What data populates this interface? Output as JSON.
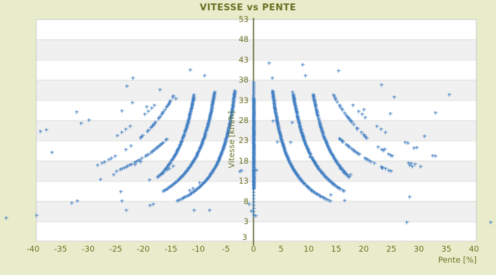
{
  "title": "VITESSE vs PENTE",
  "axes": {
    "x_title": "Pente [%]",
    "y_title": "Vitesse [km/h]",
    "y_axis_bottom_label": "3"
  },
  "colors": {
    "background": "#e9ecca",
    "band_light": "#ffffff",
    "band_dark": "#f0f0f0",
    "band_line": "#dcdcdc",
    "plot_border": "#c8c8c8",
    "axis_line": "#4c581c",
    "text": "#6c7226",
    "points": "#3d7cc2"
  },
  "chart_data": {
    "type": "scatter",
    "title": "VITESSE vs PENTE",
    "xlabel": "Pente [%]",
    "ylabel": "Vitesse [km/h]",
    "xlim": [
      -39.5,
      40.5
    ],
    "ylim": [
      -2.1,
      52.7
    ],
    "x_ticks": [
      -40,
      -35,
      -30,
      -25,
      -20,
      -15,
      -10,
      -5,
      0,
      5,
      10,
      15,
      20,
      25,
      30,
      35,
      40
    ],
    "y_ticks": [
      53,
      48,
      43,
      38,
      33,
      28,
      23,
      18,
      13,
      8,
      3
    ],
    "grid": "horizontal alternating white/gray bands every 5 units",
    "legend_position": "none",
    "marker": "plus",
    "zero_column": {
      "x": 0,
      "dense_v_range": [
        11.0,
        33.5
      ],
      "dense_step": 0.13,
      "x_jitter": 0.05,
      "sparse_top_v_range": [
        33.8,
        37.6
      ],
      "sparse_top_step": 0.45,
      "sparse_bottom_v_range": [
        4.6,
        10.6
      ],
      "sparse_bottom_step": 0.8
    },
    "arcs": [
      {
        "name": "arc-A",
        "model": "v = C / (|x| - x0)",
        "C": 110,
        "x0": 0.3,
        "v_range": [
          8.0,
          35.3
        ],
        "step": 0.18,
        "dropout": 0.02,
        "sides": [
          -1,
          1
        ]
      },
      {
        "name": "arc-B",
        "model": "v = C / (|x| - x0)",
        "C": 140,
        "x0": 3.1,
        "v_range": [
          10.5,
          35.0
        ],
        "step": 0.18,
        "dropout": 0.03,
        "sides": [
          -1,
          1
        ]
      },
      {
        "name": "arc-C",
        "model": "v = C / (|x| - x0)",
        "C": 155,
        "x0": 6.3,
        "v_range": [
          14.0,
          34.4
        ],
        "step": 0.2,
        "dropout": 0.05,
        "sides": [
          -1,
          1
        ]
      },
      {
        "name": "arc-D",
        "model": "v = C / (|x| - x0)",
        "C": 463,
        "x0": 1.0,
        "v_range": [
          16.5,
          34.3
        ],
        "step": 0.28,
        "dropout": 0.45,
        "sides": [
          -1,
          1
        ]
      },
      {
        "name": "arc-E",
        "model": "v = C / (|x| - x0)",
        "C": 419,
        "x0": -2.2,
        "v_range": [
          15.3,
          23.8
        ],
        "step": 0.22,
        "dropout": 0.25,
        "sides": [
          -1,
          1
        ]
      },
      {
        "name": "arc-G",
        "model": "v = C / (|x| - x0)",
        "C": 700,
        "x0": -4.0,
        "v_range": [
          24.0,
          31.8
        ],
        "step": 0.75,
        "dropout": 0.3,
        "sides": [
          -1,
          1
        ]
      }
    ],
    "scatter_points": [
      [
        -44.9,
        3.9
      ],
      [
        43,
        2.8
      ],
      [
        -39.4,
        4.5
      ],
      [
        -38.7,
        25.3
      ],
      [
        -37.6,
        25.7
      ],
      [
        -36.6,
        20.1
      ],
      [
        -33,
        7.6
      ],
      [
        -32,
        8.1
      ],
      [
        -32.1,
        30.1
      ],
      [
        -31.3,
        27.3
      ],
      [
        -29.9,
        28.1
      ],
      [
        -27.8,
        13.4
      ],
      [
        -25.4,
        14.6
      ],
      [
        -24.1,
        10.4
      ],
      [
        -23.9,
        8.1
      ],
      [
        -23.1,
        5.8
      ],
      [
        -23,
        36.5
      ],
      [
        -23.9,
        30.4
      ],
      [
        -21.9,
        38.5
      ],
      [
        -22,
        32.4
      ],
      [
        -21.5,
        17.1
      ],
      [
        -20.5,
        17.8
      ],
      [
        -19.4,
        31.4
      ],
      [
        -18.9,
        13.3
      ],
      [
        -18.8,
        7.0
      ],
      [
        -18.2,
        7.3
      ],
      [
        -17,
        35.6
      ],
      [
        -16.4,
        15.0
      ],
      [
        -15.7,
        15.8
      ],
      [
        -15.3,
        16.1
      ],
      [
        -14.6,
        16.7
      ],
      [
        -14.1,
        33.4
      ],
      [
        -11.6,
        10.7
      ],
      [
        -11.5,
        40.5
      ],
      [
        -11,
        11.2
      ],
      [
        -10.8,
        5.8
      ],
      [
        -9.8,
        12.6
      ],
      [
        -8.9,
        39.1
      ],
      [
        -8,
        5.8
      ],
      [
        -2.5,
        15.4
      ],
      [
        -2.2,
        15.6
      ],
      [
        -0.8,
        7.3
      ],
      [
        -0.4,
        5.6
      ],
      [
        0.4,
        4.4
      ],
      [
        0.5,
        15.7
      ],
      [
        2.8,
        42.2
      ],
      [
        3.4,
        38.5
      ],
      [
        3.5,
        27.9
      ],
      [
        4.3,
        22.7
      ],
      [
        6.7,
        22.6
      ],
      [
        7,
        27.5
      ],
      [
        8.9,
        41.8
      ],
      [
        9.4,
        39.1
      ],
      [
        10.2,
        19.0
      ],
      [
        14,
        9.6
      ],
      [
        15.4,
        40.3
      ],
      [
        15.7,
        16.1
      ],
      [
        16.3,
        15.2
      ],
      [
        16.5,
        8.2
      ],
      [
        17.6,
        14.6
      ],
      [
        20,
        30.7
      ],
      [
        23.2,
        36.8
      ],
      [
        23.3,
        16.3
      ],
      [
        23.8,
        20.9
      ],
      [
        24.8,
        29.7
      ],
      [
        25.5,
        33.8
      ],
      [
        27.5,
        22.6
      ],
      [
        28,
        22.4
      ],
      [
        28.1,
        17.5
      ],
      [
        28.6,
        17.4
      ],
      [
        28.3,
        9.1
      ],
      [
        27.8,
        2.8
      ],
      [
        29.1,
        21.2
      ],
      [
        29.6,
        21.3
      ],
      [
        29.3,
        17.2
      ],
      [
        30.3,
        16.6
      ],
      [
        31,
        24.1
      ],
      [
        32.5,
        19.3
      ],
      [
        33,
        19.2
      ],
      [
        33,
        29.9
      ],
      [
        35.5,
        34.4
      ]
    ]
  }
}
